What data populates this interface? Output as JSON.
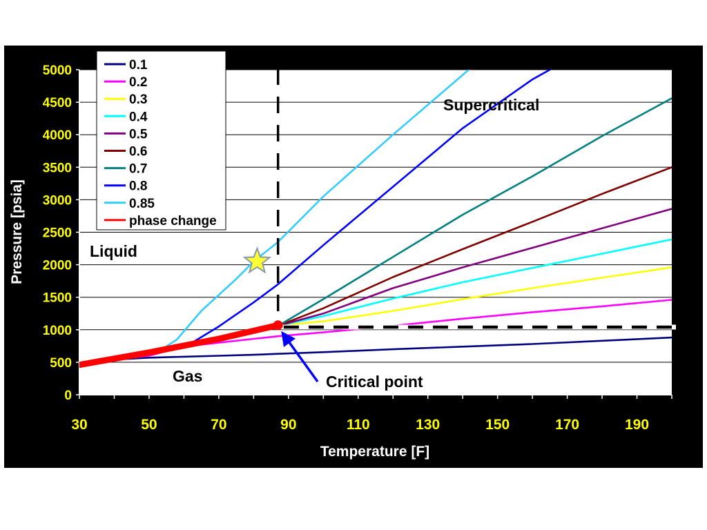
{
  "chart_data": {
    "type": "line",
    "title": "",
    "xlabel": "Temperature [F]",
    "ylabel": "Pressure [psia]",
    "xlim": [
      30,
      200
    ],
    "ylim": [
      0,
      5000
    ],
    "x_ticks": [
      "30",
      "50",
      "70",
      "90",
      "110",
      "130",
      "150",
      "170",
      "190"
    ],
    "y_ticks": [
      "0",
      "500",
      "1000",
      "1500",
      "2000",
      "2500",
      "3000",
      "3500",
      "4000",
      "4500",
      "5000"
    ],
    "grid": "horizontal",
    "legend_position": "top-left",
    "series": [
      {
        "name": "0.1",
        "color": "#00007f",
        "points": [
          [
            30,
            460
          ],
          [
            40,
            540
          ],
          [
            50,
            570
          ],
          [
            60,
            585
          ],
          [
            70,
            600
          ],
          [
            80,
            615
          ],
          [
            87,
            630
          ],
          [
            100,
            655
          ],
          [
            120,
            700
          ],
          [
            140,
            740
          ],
          [
            160,
            780
          ],
          [
            180,
            830
          ],
          [
            200,
            880
          ]
        ]
      },
      {
        "name": "0.2",
        "color": "#ff00ff",
        "points": [
          [
            30,
            460
          ],
          [
            40,
            540
          ],
          [
            50,
            600
          ],
          [
            60,
            740
          ],
          [
            70,
            800
          ],
          [
            80,
            860
          ],
          [
            87,
            900
          ],
          [
            100,
            960
          ],
          [
            120,
            1060
          ],
          [
            140,
            1170
          ],
          [
            160,
            1270
          ],
          [
            180,
            1360
          ],
          [
            200,
            1460
          ]
        ]
      },
      {
        "name": "0.3",
        "color": "#ffff00",
        "points": [
          [
            87,
            1060
          ],
          [
            100,
            1130
          ],
          [
            120,
            1290
          ],
          [
            140,
            1470
          ],
          [
            160,
            1640
          ],
          [
            180,
            1800
          ],
          [
            200,
            1960
          ]
        ]
      },
      {
        "name": "0.4",
        "color": "#00ffff",
        "points": [
          [
            87,
            1060
          ],
          [
            100,
            1210
          ],
          [
            120,
            1480
          ],
          [
            140,
            1730
          ],
          [
            160,
            1950
          ],
          [
            180,
            2170
          ],
          [
            200,
            2390
          ]
        ]
      },
      {
        "name": "0.5",
        "color": "#800080",
        "points": [
          [
            87,
            1060
          ],
          [
            100,
            1250
          ],
          [
            120,
            1640
          ],
          [
            140,
            1960
          ],
          [
            160,
            2260
          ],
          [
            180,
            2560
          ],
          [
            200,
            2860
          ]
        ]
      },
      {
        "name": "0.6",
        "color": "#800000",
        "points": [
          [
            87,
            1060
          ],
          [
            100,
            1330
          ],
          [
            120,
            1810
          ],
          [
            140,
            2240
          ],
          [
            160,
            2660
          ],
          [
            180,
            3090
          ],
          [
            200,
            3500
          ]
        ]
      },
      {
        "name": "0.7",
        "color": "#008080",
        "points": [
          [
            87,
            1060
          ],
          [
            100,
            1470
          ],
          [
            120,
            2120
          ],
          [
            140,
            2770
          ],
          [
            160,
            3360
          ],
          [
            180,
            3980
          ],
          [
            200,
            4560
          ]
        ]
      },
      {
        "name": "0.8",
        "color": "#0000ff",
        "points": [
          [
            52,
            640
          ],
          [
            62,
            790
          ],
          [
            70,
            1050
          ],
          [
            80,
            1420
          ],
          [
            87,
            1700
          ],
          [
            100,
            2300
          ],
          [
            120,
            3200
          ],
          [
            140,
            4100
          ],
          [
            160,
            4850
          ],
          [
            170,
            5150
          ]
        ]
      },
      {
        "name": "0.85",
        "color": "#33ccff",
        "points": [
          [
            52,
            640
          ],
          [
            58,
            850
          ],
          [
            65,
            1290
          ],
          [
            75,
            1780
          ],
          [
            80,
            2050
          ],
          [
            87,
            2350
          ],
          [
            100,
            3050
          ],
          [
            120,
            4000
          ],
          [
            145,
            5150
          ]
        ]
      },
      {
        "name": "phase change",
        "color": "#ff0000",
        "points": [
          [
            30,
            460
          ],
          [
            50,
            650
          ],
          [
            70,
            860
          ],
          [
            87,
            1070
          ]
        ]
      }
    ],
    "annotations": [
      "Supercritical",
      "Liquid",
      "Gas",
      "Critical point"
    ]
  }
}
